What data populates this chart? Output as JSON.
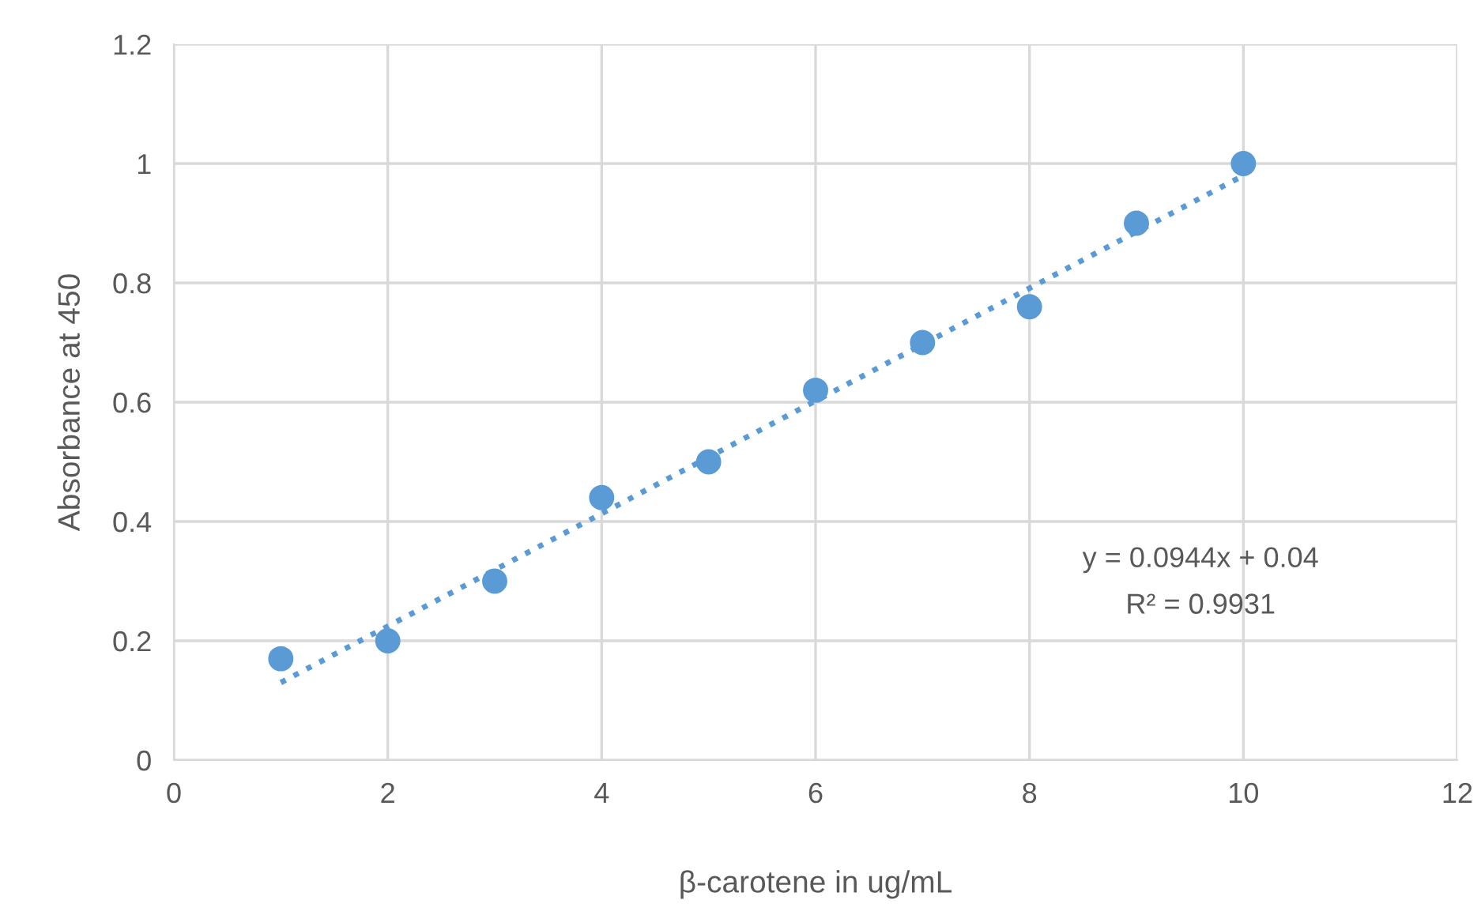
{
  "chart_data": {
    "type": "scatter",
    "xlabel": "β-carotene in ug/mL",
    "ylabel": "Absorbance at 450",
    "x": [
      1,
      2,
      3,
      4,
      5,
      6,
      7,
      8,
      9,
      10
    ],
    "series": [
      {
        "color": "#5b9bd5",
        "marker": "circle",
        "values": [
          0.17,
          0.2,
          0.3,
          0.44,
          0.5,
          0.62,
          0.7,
          0.76,
          0.9,
          1.0
        ]
      },
      {
        "type": "line",
        "color": "#5b9bd5",
        "line_style": "dotted",
        "x": [
          1,
          10
        ],
        "values": [
          0.13,
          0.98
        ]
      }
    ],
    "annotations": [
      "y = 0.0944x + 0.04",
      "R² = 0.9931"
    ],
    "xlim": [
      0,
      12
    ],
    "xticks": [
      0,
      2,
      4,
      6,
      8,
      10,
      12
    ],
    "ylim": [
      0,
      1.2
    ],
    "yticks": [
      0,
      0.2,
      0.4,
      0.6,
      0.8,
      1,
      1.2
    ],
    "grid": true,
    "legend": false
  }
}
